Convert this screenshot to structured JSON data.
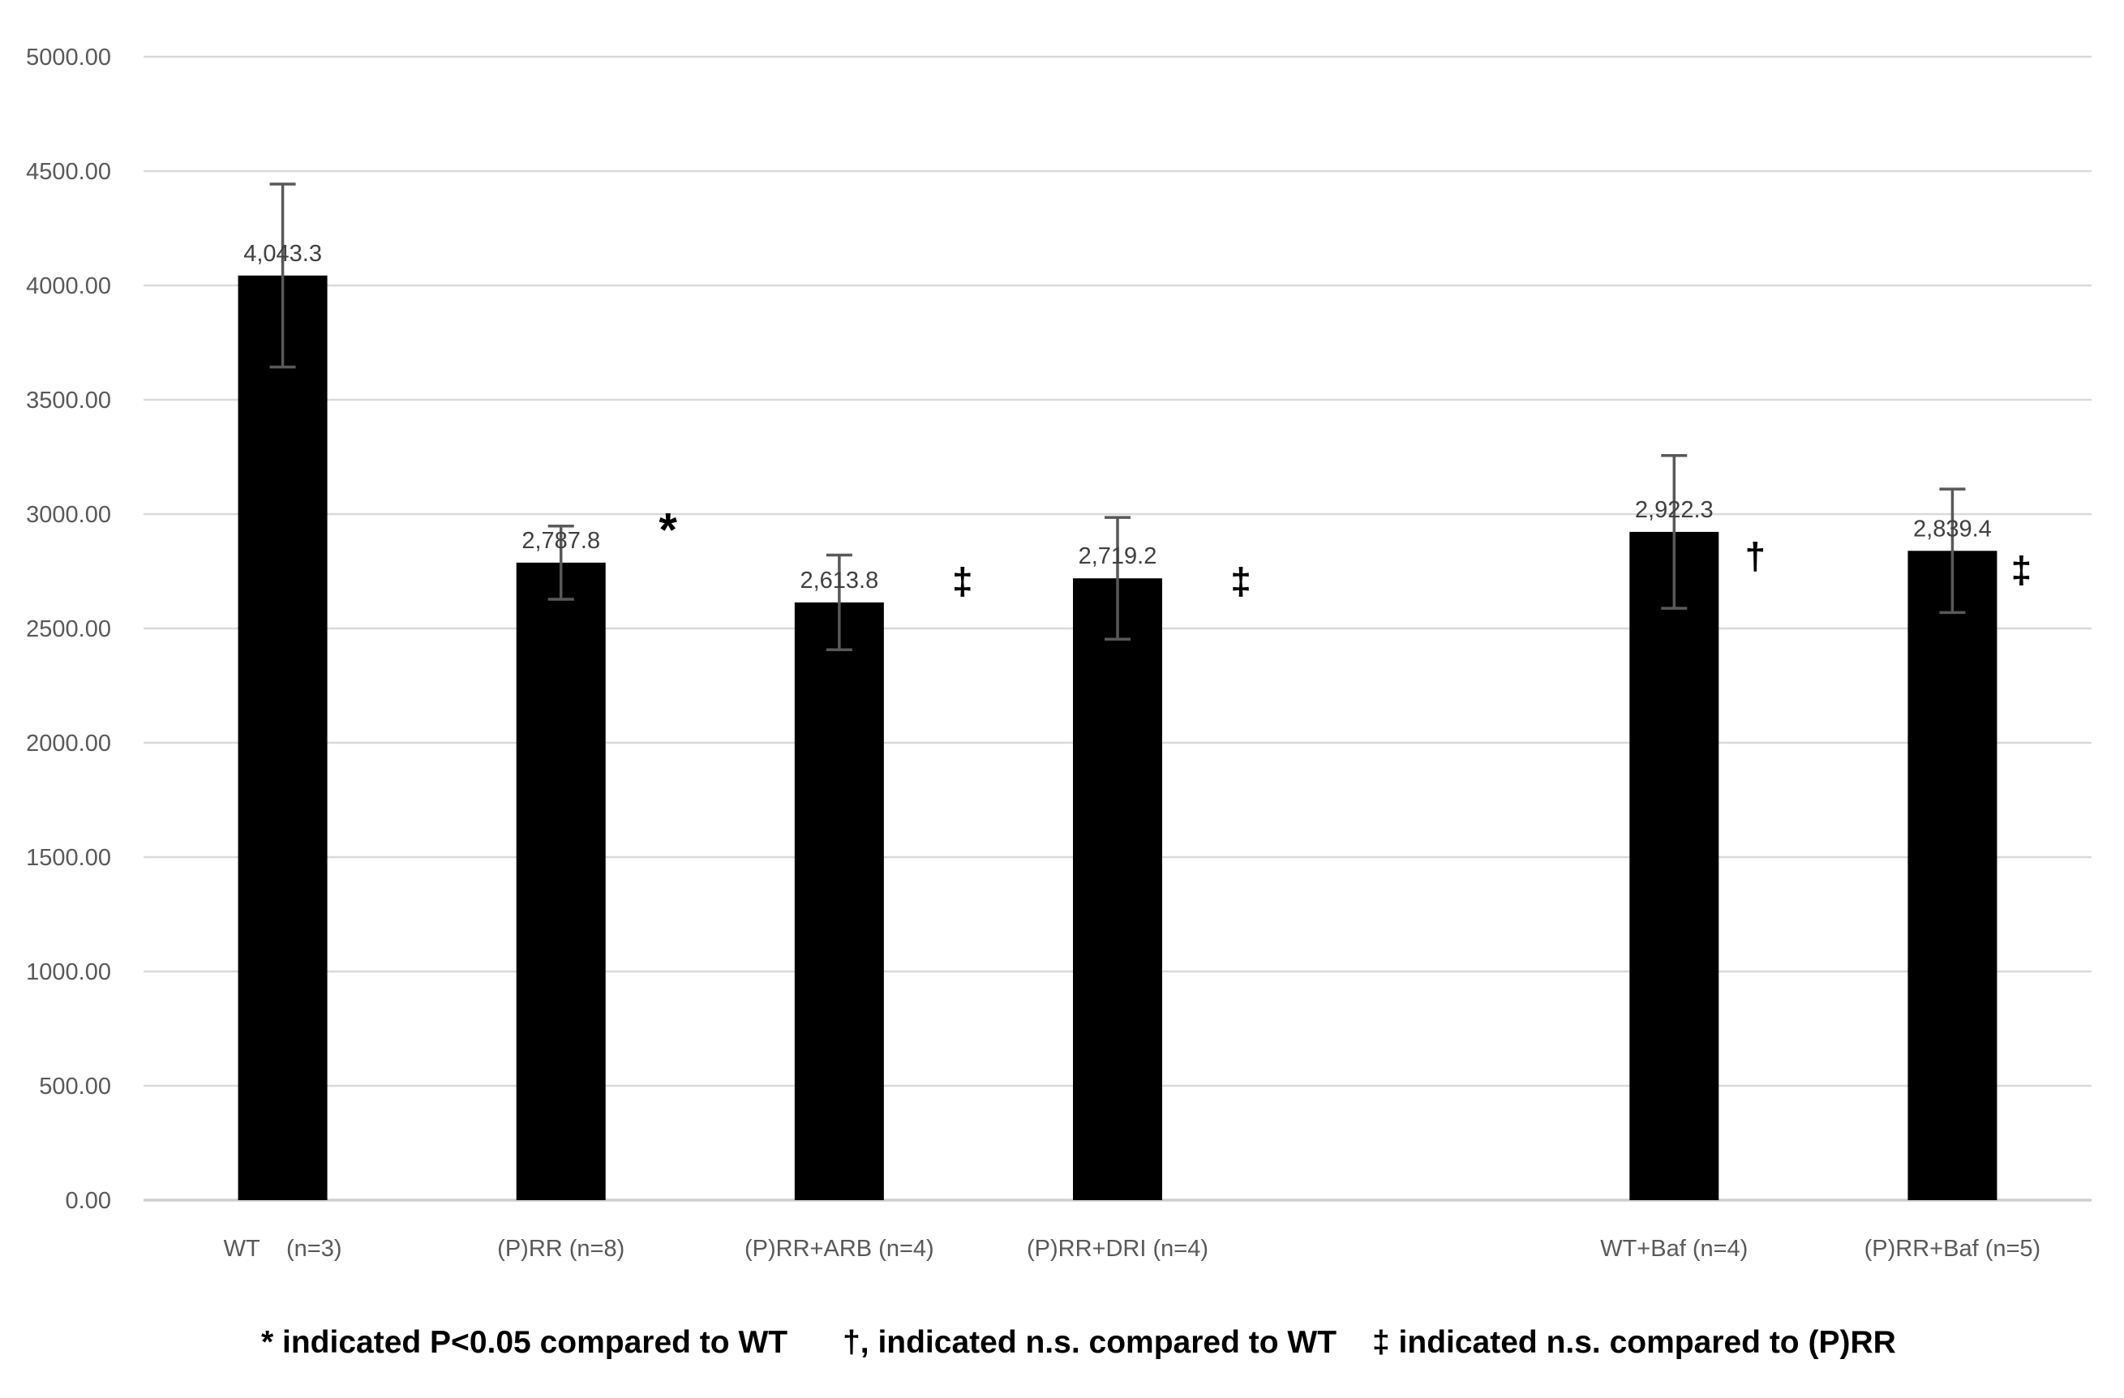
{
  "chart_data": {
    "type": "bar",
    "title": "",
    "xlabel": "",
    "ylabel": "",
    "ylim": [
      0,
      5000
    ],
    "ytick_step": 500,
    "ytick_decimals": 2,
    "grid": true,
    "legend": "none",
    "bar_color": "#000000",
    "error_bar_color": "#595959",
    "gridline_color": "#d9d9d9",
    "axis_line_color": "#cfcfcf",
    "tick_label_color": "#595959",
    "value_label_color": "#404040",
    "marker_color": "#000000",
    "n_slots": 7,
    "bars": [
      {
        "slot": 0,
        "label": "WT    (n=3)",
        "value": 4043.3,
        "value_label": "4,043.3",
        "error": 400,
        "marker": null
      },
      {
        "slot": 1,
        "label": "(P)RR (n=8)",
        "value": 2787.8,
        "value_label": "2,787.8",
        "error": 160,
        "marker": {
          "symbol": "*",
          "dx": 132,
          "at_value": 2860,
          "size": 58
        }
      },
      {
        "slot": 2,
        "label": "(P)RR+ARB (n=4)",
        "value": 2613.8,
        "value_label": "2,613.8",
        "error": 207,
        "marker": {
          "symbol": "‡",
          "dx": 152,
          "at_value": 2650,
          "size": 46
        }
      },
      {
        "slot": 3,
        "label": "(P)RR+DRI (n=4)",
        "value": 2719.2,
        "value_label": "2,719.2",
        "error": 266,
        "marker": {
          "symbol": "‡",
          "dx": 152,
          "at_value": 2650,
          "size": 46
        }
      },
      {
        "slot": 5,
        "label": "WT+Baf (n=4)",
        "value": 2922.3,
        "value_label": "2,922.3",
        "error": 334,
        "marker": {
          "symbol": "†",
          "dx": 100,
          "at_value": 2760,
          "size": 46
        }
      },
      {
        "slot": 6,
        "label": "(P)RR+Baf (n=5)",
        "value": 2839.4,
        "value_label": "2,839.4",
        "error": 270,
        "marker": {
          "symbol": "‡",
          "dx": 85,
          "at_value": 2700,
          "size": 46
        }
      }
    ],
    "footnotes": [
      "* indicated P<0.05 compared to WT",
      "†, indicated n.s. compared to WT",
      "‡ indicated n.s. compared to (P)RR"
    ]
  }
}
